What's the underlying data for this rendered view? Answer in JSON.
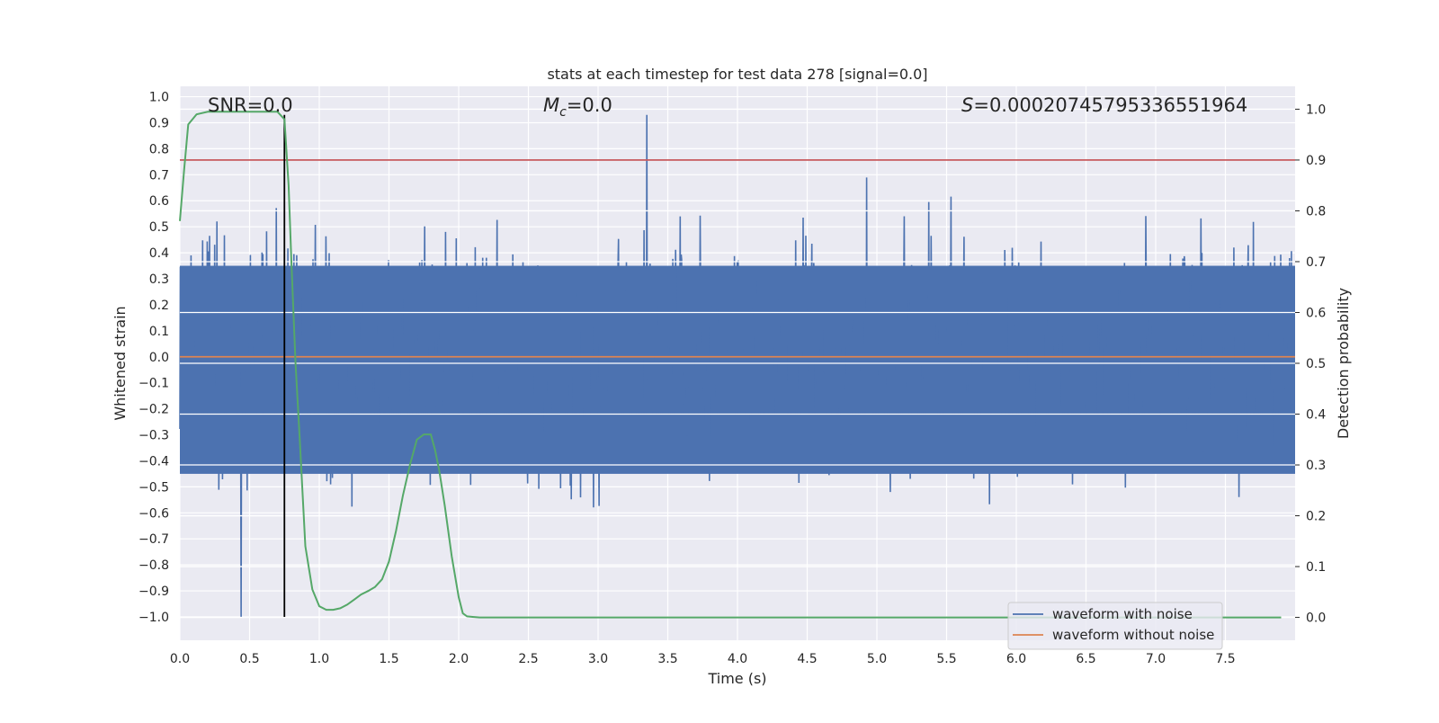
{
  "chart_data": {
    "type": "line",
    "title": "stats at each timestep for test data 278 [signal=0.0]",
    "xlabel": "Time (s)",
    "ylabel_left": "Whitened strain",
    "ylabel_right": "Detection probability",
    "xlim": [
      0.0,
      8.0
    ],
    "ylim_left": [
      -1.09,
      1.04
    ],
    "ylim_right": [
      -0.045,
      1.045
    ],
    "x_ticks": [
      "0.0",
      "0.5",
      "1.0",
      "1.5",
      "2.0",
      "2.5",
      "3.0",
      "3.5",
      "4.0",
      "4.5",
      "5.0",
      "5.5",
      "6.0",
      "6.5",
      "7.0",
      "7.5"
    ],
    "y_ticks_left": [
      "1.0",
      "0.9",
      "0.8",
      "0.7",
      "0.6",
      "0.5",
      "0.4",
      "0.3",
      "0.2",
      "0.1",
      "0.0",
      "−0.1",
      "−0.2",
      "−0.3",
      "−0.4",
      "−0.5",
      "−0.6",
      "−0.7",
      "−0.8",
      "−0.9",
      "−1.0"
    ],
    "y_ticks_right": [
      "1.0",
      "0.9",
      "0.8",
      "0.7",
      "0.6",
      "0.5",
      "0.4",
      "0.3",
      "0.2",
      "0.1",
      "0.0"
    ],
    "annotations": {
      "snr": "SNR=0.0",
      "mc_symbol": "M",
      "mc_sub": "c",
      "mc_value": "=0.0",
      "s_symbol": "S",
      "s_value": "=0.00020745795336551964"
    },
    "series": [
      {
        "name": "waveform with noise",
        "axis": "left",
        "color": "#4c72b0",
        "description_stats": {
          "core_band": [
            -0.45,
            0.35
          ],
          "max_peak": 0.93,
          "min_peak": -1.0
        }
      },
      {
        "name": "waveform without noise",
        "axis": "left",
        "color": "#dd8452",
        "value": 0.0
      },
      {
        "axis": "right",
        "color": "#55a868",
        "x": [
          0.0,
          0.03,
          0.06,
          0.12,
          0.2,
          0.3,
          0.4,
          0.5,
          0.6,
          0.7,
          0.75,
          0.78,
          0.8,
          0.83,
          0.86,
          0.9,
          0.95,
          1.0,
          1.05,
          1.1,
          1.15,
          1.2,
          1.25,
          1.3,
          1.35,
          1.4,
          1.45,
          1.5,
          1.55,
          1.6,
          1.65,
          1.7,
          1.75,
          1.8,
          1.83,
          1.86,
          1.9,
          1.95,
          2.0,
          2.03,
          2.06,
          2.1,
          2.15,
          2.3,
          3.0,
          4.0,
          5.0,
          6.0,
          7.0,
          7.9
        ],
        "y": [
          0.78,
          0.88,
          0.97,
          0.99,
          0.995,
          0.995,
          0.995,
          0.995,
          0.995,
          0.995,
          0.98,
          0.85,
          0.7,
          0.5,
          0.35,
          0.14,
          0.055,
          0.022,
          0.015,
          0.015,
          0.018,
          0.025,
          0.035,
          0.045,
          0.052,
          0.06,
          0.075,
          0.11,
          0.17,
          0.24,
          0.3,
          0.35,
          0.36,
          0.36,
          0.33,
          0.29,
          0.22,
          0.12,
          0.04,
          0.008,
          0.002,
          0.001,
          0.0,
          0.0,
          0.0,
          0.0,
          0.0,
          0.0,
          0.0,
          0.0
        ]
      },
      {
        "axis": "right",
        "color": "#c44e52",
        "value": 0.9
      },
      {
        "axis": "left",
        "color": "#000000",
        "type": "vline",
        "x": 0.75,
        "y_range": [
          -1.0,
          0.93
        ]
      }
    ],
    "legend": {
      "placement": "lower-right",
      "entries": [
        "waveform with noise",
        "waveform without noise"
      ]
    },
    "grid": true,
    "facecolor": "#eaeaf2"
  }
}
